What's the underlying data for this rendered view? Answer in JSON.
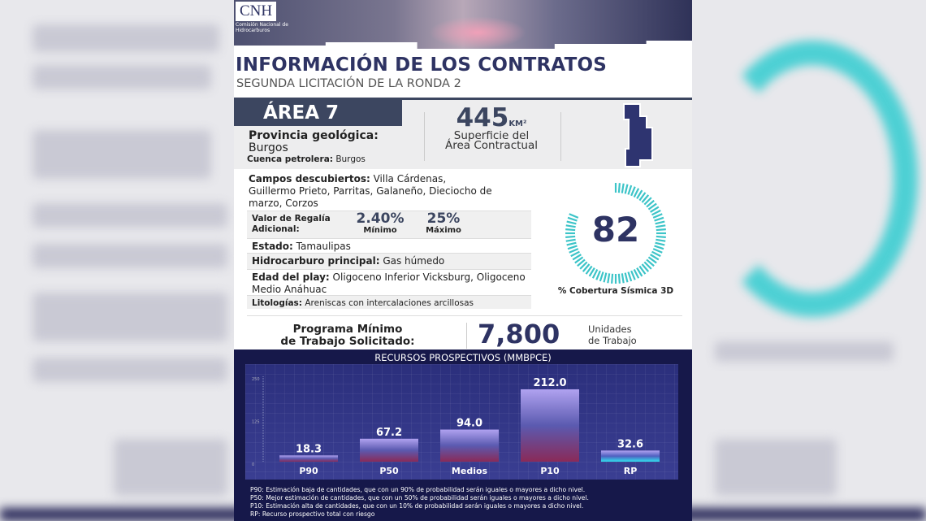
{
  "header": {
    "logo": "CNH",
    "logo_sub": "Comisión Nacional de Hidrocarburos",
    "title": "INFORMACIÓN DE LOS CONTRATOS",
    "subtitle": "SEGUNDA LICITACIÓN DE LA RONDA 2"
  },
  "area": {
    "name": "ÁREA 7",
    "provincia_label": "Provincia geológica:",
    "provincia": "Burgos",
    "cuenca_label": "Cuenca petrolera:",
    "cuenca": " Burgos",
    "superficie": "445",
    "superficie_unit": "KM²",
    "superficie_label1": "Superficie del",
    "superficie_label2": "Área Contractual"
  },
  "details": {
    "campos_label": "Campos descubiertos:",
    "campos": " Villa Cárdenas, Guillermo Prieto, Parritas, Galaneño, Dieciocho de marzo, Corzos",
    "regalia_label1": "Valor de Regalía",
    "regalia_label2": "Adicional:",
    "regalia_min": "2.40%",
    "regalia_min_label": "Mínimo",
    "regalia_max": "25%",
    "regalia_max_label": "Máximo",
    "estado_label": "Estado:",
    "estado": " Tamaulipas",
    "hidro_label": "Hidrocarburo principal:",
    "hidro": " Gas húmedo",
    "edad_label": "Edad del play:",
    "edad": " Oligoceno Inferior Vicksburg, Oligoceno Medio Anáhuac",
    "lito_label": "Litologías:",
    "lito": " Areniscas con intercalaciones arcillosas"
  },
  "gauge": {
    "value": "82",
    "percent": 82,
    "caption": "% Cobertura Sísmica 3D",
    "color": "#3cc4c8"
  },
  "programa": {
    "label1": "Programa Mínimo",
    "label2": "de Trabajo Solicitado:",
    "value": "7,800",
    "unit1": "Unidades",
    "unit2": "de Trabajo"
  },
  "chart_data": {
    "type": "bar",
    "title": "RECURSOS PROSPECTIVOS (MMBPCE)",
    "categories": [
      "P90",
      "P50",
      "Medios",
      "P10",
      "RP"
    ],
    "values": [
      18.3,
      67.2,
      94.0,
      212.0,
      32.6
    ],
    "labels": [
      "18.3",
      "67.2",
      "94.0",
      "212.0",
      "32.6"
    ],
    "yticks": [
      "0",
      "125",
      "250"
    ],
    "ylim": [
      0,
      250
    ]
  },
  "footnotes": [
    "P90: Estimación baja de cantidades, que con un 90% de probabilidad serán iguales o mayores a dicho nivel.",
    "P50: Mejor estimación de cantidades, que con un 50% de probabilidad serán iguales o mayores a dicho nivel.",
    "P10: Estimación alta de cantidades, que con un 10% de probabilidad serán iguales o mayores a dicho nivel.",
    "RP: Recurso prospectivo total con riesgo"
  ]
}
